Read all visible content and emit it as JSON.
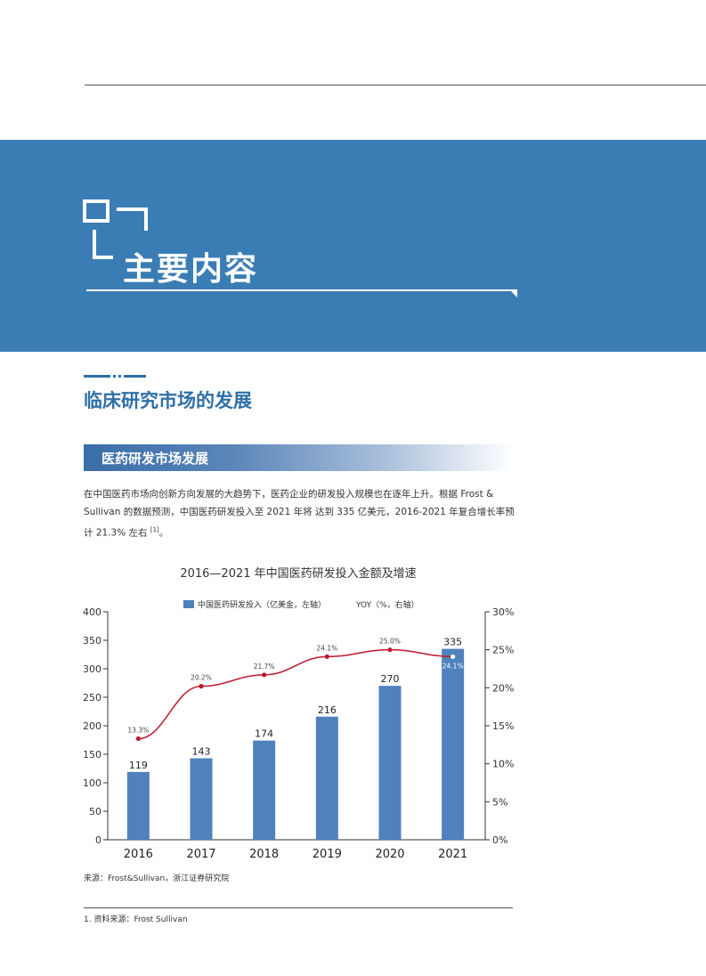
{
  "banner": {
    "title": "主要内容"
  },
  "section": {
    "title": "临床研究市场的发展"
  },
  "subsection": {
    "title": "医药研发市场发展"
  },
  "paragraph": {
    "text": "在中国医药市场向创新方向发展的大趋势下，医药企业的研发投入规模也在逐年上升。根据 Frost & Sullivan 的数据预测，中国医药研发投入至 2021 年将 达到 335 亿美元，2016-2021 年复合增长率预计 21.3% 左右",
    "ref": "[1]",
    "end": "。"
  },
  "chart_data": {
    "type": "bar",
    "title": "2016—2021 年中国医药研发投入金额及增速",
    "categories": [
      "2016",
      "2017",
      "2018",
      "2019",
      "2020",
      "2021"
    ],
    "series": [
      {
        "name": "中国医药研发投入（亿美金，左轴）",
        "type": "bar",
        "axis": "left",
        "color": "#4f81bd",
        "values": [
          119,
          143,
          174,
          216,
          270,
          335
        ]
      },
      {
        "name": "YOY（%，右轴）",
        "type": "line",
        "axis": "right",
        "color": "#c0182f",
        "values": [
          13.3,
          20.2,
          21.7,
          24.1,
          25.0,
          24.1
        ]
      }
    ],
    "left_axis": {
      "ylim": [
        0,
        400
      ],
      "ticks": [
        "0",
        "50",
        "100",
        "150",
        "200",
        "250",
        "300",
        "350",
        "400"
      ]
    },
    "right_axis": {
      "ylim": [
        0,
        30
      ],
      "ticks": [
        "0%",
        "5%",
        "10%",
        "15%",
        "20%",
        "25%",
        "30%"
      ]
    },
    "bar_labels": [
      "119",
      "143",
      "174",
      "216",
      "270",
      "335"
    ],
    "line_labels": [
      "13.3%",
      "20.2%",
      "21.7%",
      "24.1%",
      "25.0%",
      "24.1%"
    ],
    "legend_position": "top-center",
    "grid": false
  },
  "source": {
    "text": "来源：Frost&Sullivan，浙江证券研究院"
  },
  "footnote": {
    "text": "1. 资料来源：Frost Sullivan"
  }
}
